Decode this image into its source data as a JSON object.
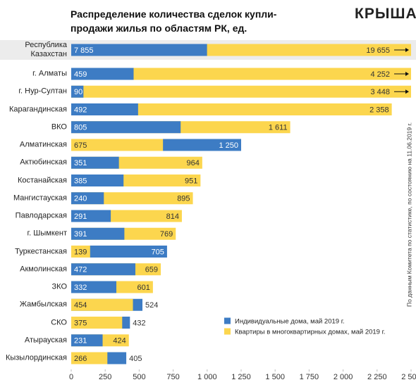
{
  "chart_data": {
    "type": "bar",
    "orientation": "horizontal",
    "overlap": true,
    "title": "Распределение количества сделок купли-продажи жилья по областям РК, ед.",
    "logo": "КРЫША",
    "note": "По данным Комитета по статистике, по состоянию на 11.06.2019 г.",
    "categories": [
      "Республика Казахстан",
      "г. Алматы",
      "г. Нур-Султан",
      "Карагандинская",
      "ВКО",
      "Алматинская",
      "Актюбинская",
      "Костанайская",
      "Мангистауская",
      "Павлодарская",
      "г. Шымкент",
      "Туркестанская",
      "Акмолинская",
      "ЗКО",
      "Жамбылская",
      "СКО",
      "Атырауская",
      "Кызылординская"
    ],
    "series": [
      {
        "name": "Индивидуальные дома, май 2019 г.",
        "color": "#3d7cc4",
        "values": [
          7855,
          459,
          90,
          492,
          805,
          1250,
          351,
          385,
          240,
          291,
          391,
          705,
          472,
          332,
          524,
          432,
          231,
          405
        ],
        "value_labels": [
          "7 855",
          "459",
          "90",
          "492",
          "805",
          "1 250",
          "351",
          "385",
          "240",
          "291",
          "391",
          "705",
          "472",
          "332",
          "524",
          "432",
          "231",
          "405"
        ]
      },
      {
        "name": "Квартиры в многоквартирных домах, май 2019 г.",
        "color": "#fcd64e",
        "values": [
          19655,
          4252,
          3448,
          2358,
          1611,
          675,
          964,
          951,
          895,
          814,
          769,
          139,
          659,
          601,
          454,
          375,
          424,
          266
        ],
        "value_labels": [
          "19 655",
          "4 252",
          "3 448",
          "2 358",
          "1 611",
          "675",
          "964",
          "951",
          "895",
          "814",
          "769",
          "139",
          "659",
          "601",
          "454",
          "375",
          "424",
          "266"
        ]
      }
    ],
    "xlim": [
      0,
      2500
    ],
    "xticks": [
      0,
      250,
      500,
      750,
      {
        "value": 1000,
        "label": "1 000"
      },
      {
        "value": 1250,
        "label": "1 250"
      },
      {
        "value": 1500,
        "label": "1 500"
      },
      {
        "value": 1750,
        "label": "1 750"
      },
      {
        "value": 2000,
        "label": "2 000"
      },
      {
        "value": 2250,
        "label": "2 250"
      },
      {
        "value": 2500,
        "label": "2 500"
      }
    ],
    "highlight_first": true
  }
}
